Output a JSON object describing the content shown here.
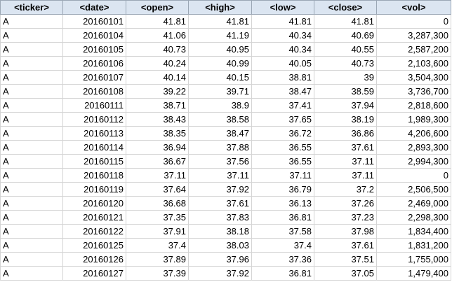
{
  "columns": [
    "<ticker>",
    "<date>",
    "<open>",
    "<high>",
    "<low>",
    "<close>",
    "<vol>"
  ],
  "rows": [
    [
      "A",
      "20160101",
      "41.81",
      "41.81",
      "41.81",
      "41.81",
      "0"
    ],
    [
      "A",
      "20160104",
      "41.06",
      "41.19",
      "40.34",
      "40.69",
      "3,287,300"
    ],
    [
      "A",
      "20160105",
      "40.73",
      "40.95",
      "40.34",
      "40.55",
      "2,587,200"
    ],
    [
      "A",
      "20160106",
      "40.24",
      "40.99",
      "40.05",
      "40.73",
      "2,103,600"
    ],
    [
      "A",
      "20160107",
      "40.14",
      "40.15",
      "38.81",
      "39",
      "3,504,300"
    ],
    [
      "A",
      "20160108",
      "39.22",
      "39.71",
      "38.47",
      "38.59",
      "3,736,700"
    ],
    [
      "A",
      "20160111",
      "38.71",
      "38.9",
      "37.41",
      "37.94",
      "2,818,600"
    ],
    [
      "A",
      "20160112",
      "38.43",
      "38.58",
      "37.65",
      "38.19",
      "1,989,300"
    ],
    [
      "A",
      "20160113",
      "38.35",
      "38.47",
      "36.72",
      "36.86",
      "4,206,600"
    ],
    [
      "A",
      "20160114",
      "36.94",
      "37.88",
      "36.55",
      "37.61",
      "2,893,300"
    ],
    [
      "A",
      "20160115",
      "36.67",
      "37.56",
      "36.55",
      "37.11",
      "2,994,300"
    ],
    [
      "A",
      "20160118",
      "37.11",
      "37.11",
      "37.11",
      "37.11",
      "0"
    ],
    [
      "A",
      "20160119",
      "37.64",
      "37.92",
      "36.79",
      "37.2",
      "2,506,500"
    ],
    [
      "A",
      "20160120",
      "36.68",
      "37.61",
      "36.13",
      "37.26",
      "2,469,000"
    ],
    [
      "A",
      "20160121",
      "37.35",
      "37.83",
      "36.81",
      "37.23",
      "2,298,300"
    ],
    [
      "A",
      "20160122",
      "37.91",
      "38.18",
      "37.58",
      "37.98",
      "1,834,400"
    ],
    [
      "A",
      "20160125",
      "37.4",
      "38.03",
      "37.4",
      "37.61",
      "1,831,200"
    ],
    [
      "A",
      "20160126",
      "37.89",
      "37.96",
      "37.36",
      "37.51",
      "1,755,000"
    ],
    [
      "A",
      "20160127",
      "37.39",
      "37.92",
      "36.81",
      "37.05",
      "1,479,400"
    ]
  ]
}
